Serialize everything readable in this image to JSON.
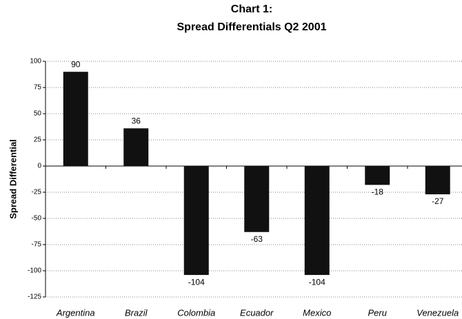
{
  "chart_data": {
    "type": "bar",
    "title": "Chart 1:",
    "subtitle": "Spread Differentials Q2 2001",
    "y_label": "Spread Differential",
    "categories": [
      "Argentina",
      "Brazil",
      "Colombia",
      "Ecuador",
      "Mexico",
      "Peru",
      "Venezuela"
    ],
    "values": [
      90,
      36,
      -104,
      -63,
      -104,
      -18,
      -27
    ],
    "color": "#111111",
    "ylim": [
      -125,
      100
    ],
    "yticks": [
      -125,
      -100,
      -75,
      -50,
      -25,
      0,
      25,
      50,
      75,
      100
    ],
    "grid": true
  }
}
